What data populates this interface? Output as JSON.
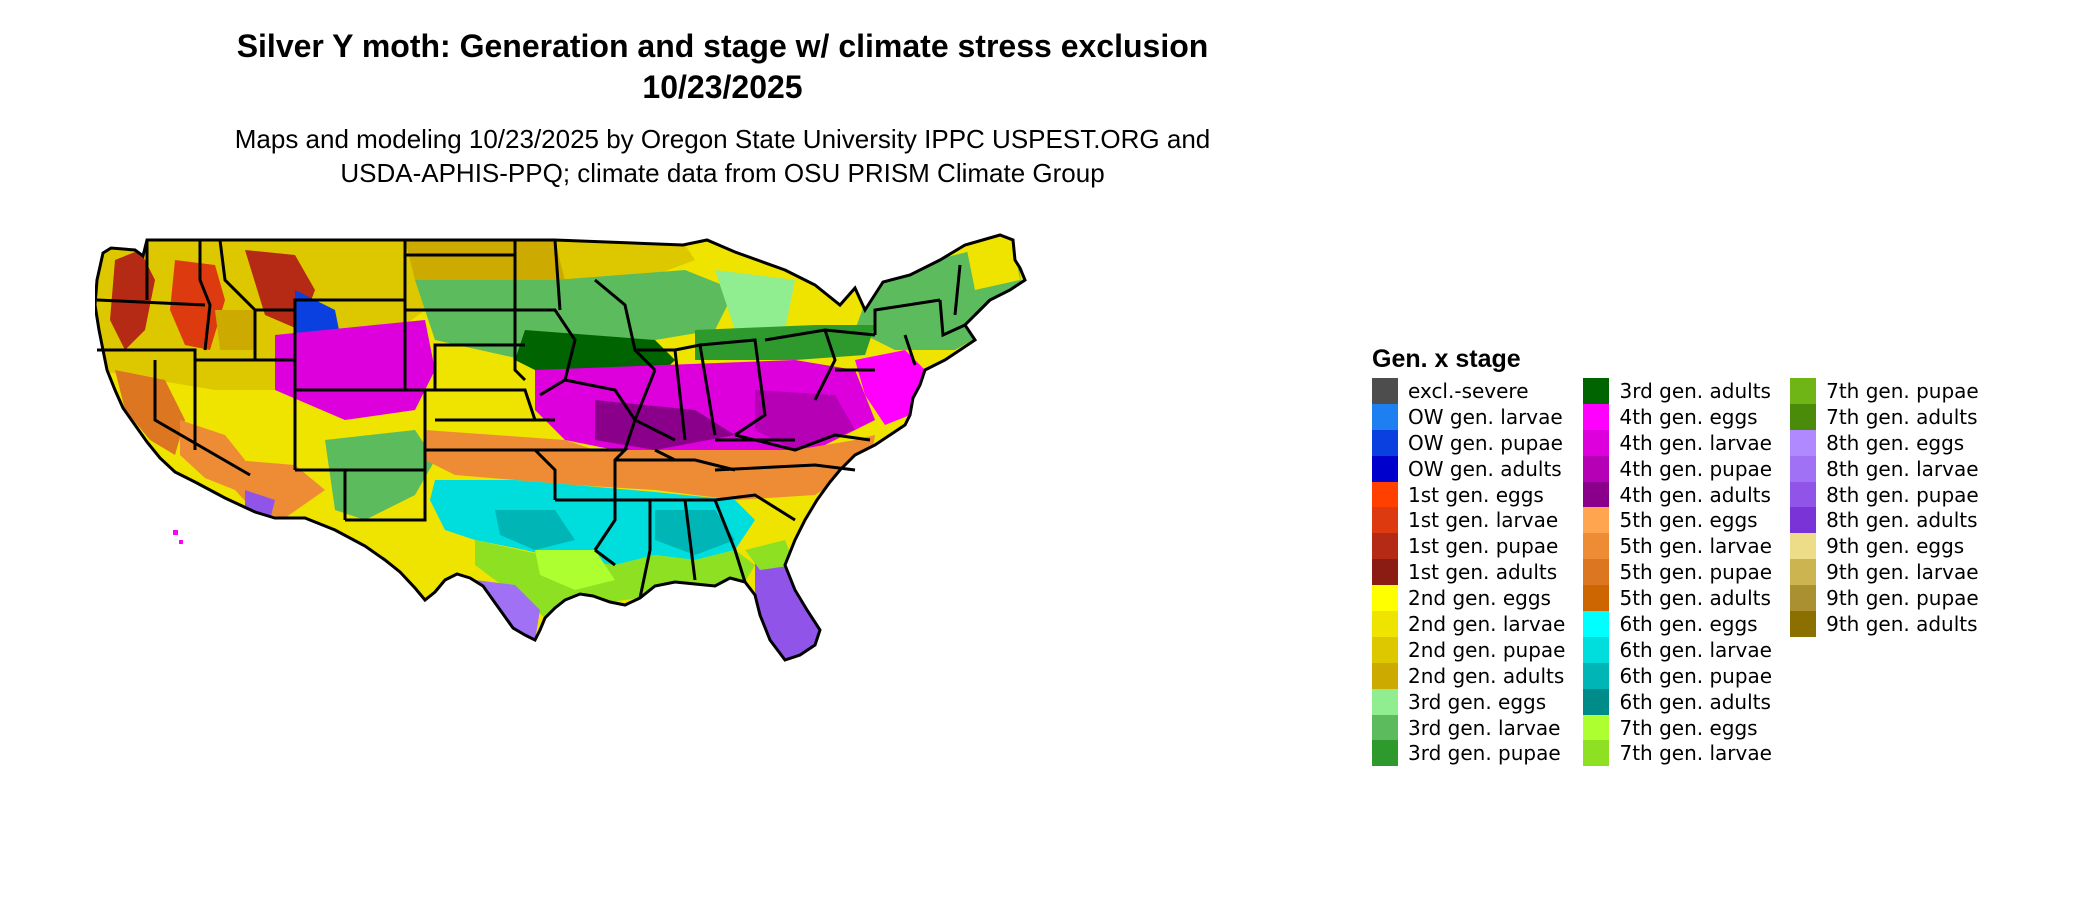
{
  "title": {
    "line1": "Silver Y moth: Generation and stage w/ climate stress exclusion",
    "line2": "10/23/2025"
  },
  "subtitle": {
    "line1": "Maps and modeling 10/23/2025 by Oregon State University IPPC USPEST.ORG and",
    "line2": "USDA-APHIS-PPQ; climate data from OSU PRISM Climate Group"
  },
  "legend": {
    "title": "Gen. x stage",
    "columns": [
      [
        {
          "label": "excl.-severe",
          "color": "#4d4d4d"
        },
        {
          "label": "OW gen. larvae",
          "color": "#1e7ff0"
        },
        {
          "label": "OW gen. pupae",
          "color": "#0a3fe0"
        },
        {
          "label": "OW gen. adults",
          "color": "#0000cc"
        },
        {
          "label": "1st gen. eggs",
          "color": "#ff4000"
        },
        {
          "label": "1st gen. larvae",
          "color": "#dd3a10"
        },
        {
          "label": "1st gen. pupae",
          "color": "#b52a14"
        },
        {
          "label": "1st gen. adults",
          "color": "#8b1c14"
        },
        {
          "label": "2nd gen. eggs",
          "color": "#ffff00"
        },
        {
          "label": "2nd gen. larvae",
          "color": "#eee400"
        },
        {
          "label": "2nd gen. pupae",
          "color": "#ddc800"
        },
        {
          "label": "2nd gen. adults",
          "color": "#cdaa00"
        },
        {
          "label": "3rd gen. eggs",
          "color": "#90ee90"
        },
        {
          "label": "3rd gen. larvae",
          "color": "#5cbb5c"
        },
        {
          "label": "3rd gen. pupae",
          "color": "#2e9a2e"
        }
      ],
      [
        {
          "label": "3rd gen. adults",
          "color": "#006400"
        },
        {
          "label": "4th gen. eggs",
          "color": "#ff00ff"
        },
        {
          "label": "4th gen. larvae",
          "color": "#dd00dd"
        },
        {
          "label": "4th gen. pupae",
          "color": "#b500b5"
        },
        {
          "label": "4th gen. adults",
          "color": "#8b008b"
        },
        {
          "label": "5th gen. eggs",
          "color": "#ffa54f"
        },
        {
          "label": "5th gen. larvae",
          "color": "#ee8c35"
        },
        {
          "label": "5th gen. pupae",
          "color": "#dd7620"
        },
        {
          "label": "5th gen. adults",
          "color": "#cd6600"
        },
        {
          "label": "6th gen. eggs",
          "color": "#00ffff"
        },
        {
          "label": "6th gen. larvae",
          "color": "#00dddd"
        },
        {
          "label": "6th gen. pupae",
          "color": "#00b5b5"
        },
        {
          "label": "6th gen. adults",
          "color": "#008b8b"
        },
        {
          "label": "7th gen. eggs",
          "color": "#adff2f"
        },
        {
          "label": "7th gen. larvae",
          "color": "#8ee022"
        }
      ],
      [
        {
          "label": "7th gen. pupae",
          "color": "#6eb515"
        },
        {
          "label": "7th gen. adults",
          "color": "#4a8b0a"
        },
        {
          "label": "8th gen. eggs",
          "color": "#b088ff"
        },
        {
          "label": "8th gen. larvae",
          "color": "#a070f5"
        },
        {
          "label": "8th gen. pupae",
          "color": "#9055e8"
        },
        {
          "label": "8th gen. adults",
          "color": "#7a33d6"
        },
        {
          "label": "9th gen. eggs",
          "color": "#eedd88"
        },
        {
          "label": "9th gen. larvae",
          "color": "#ccb550"
        },
        {
          "label": "9th gen. pupae",
          "color": "#aa9030"
        },
        {
          "label": "9th gen. adults",
          "color": "#8b7000"
        }
      ]
    ]
  }
}
